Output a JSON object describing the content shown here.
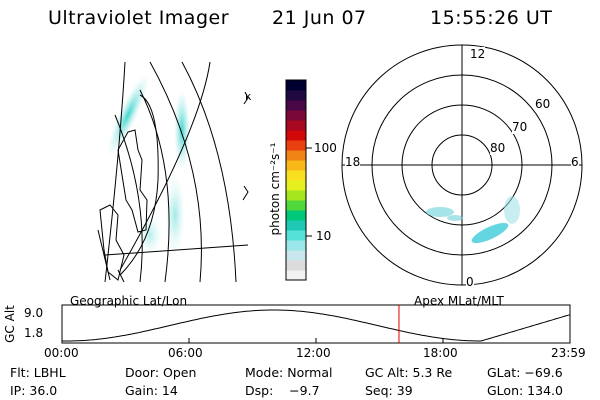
{
  "header": {
    "instrument": "Ultraviolet Imager",
    "date": "21 Jun 07",
    "time": "15:55:26 UT"
  },
  "colorbar": {
    "unit_label": "photon cm⁻²s⁻¹",
    "ticks": [
      "100",
      "10"
    ],
    "colors": [
      "#f2f2f2",
      "#dcdcdc",
      "#c8e6ee",
      "#9ae6e8",
      "#55e0d8",
      "#1ec8b4",
      "#00c87a",
      "#50d83c",
      "#a6e61e",
      "#e6f01e",
      "#f8e020",
      "#f8b818",
      "#f08414",
      "#e84010",
      "#d00808",
      "#a80820",
      "#7a0838",
      "#480848",
      "#200840",
      "#000030"
    ]
  },
  "map_labels": {
    "geographic": "Geographic Lat/Lon",
    "apex": "Apex MLat/MLT"
  },
  "polar_plot": {
    "mlt_labels": {
      "top": "12",
      "left": "18",
      "right": "6",
      "bottom": "0"
    },
    "lat_labels": [
      "60",
      "70",
      "80"
    ]
  },
  "altitude_plot": {
    "ylabel": "GC Alt",
    "yticks": [
      "9.0",
      "1.8"
    ],
    "xticks": [
      "00:00",
      "06:00",
      "12:00",
      "18:00",
      "23:59"
    ],
    "current_time_hours": 15.92
  },
  "status": {
    "row1": {
      "flt": "Flt: LBHL",
      "door": "Door: Open",
      "mode": "Mode: Normal",
      "gc_alt": "GC Alt: 5.3 Re",
      "glat": "GLat: −69.6"
    },
    "row2": {
      "ip": "IP: 36.0",
      "gain": "Gain: 14",
      "dsp": "Dsp:    −9.7",
      "seq": "Seq: 39",
      "glon": "GLon: 134.0"
    }
  }
}
